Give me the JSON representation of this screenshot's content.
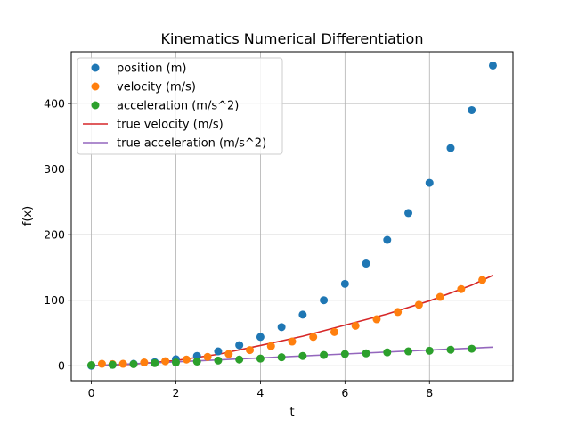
{
  "chart_data": {
    "type": "scatter",
    "title": "Kinematics Numerical Differentiation",
    "xlabel": "t",
    "ylabel": "f(x)",
    "xlim": [
      -0.475,
      9.975
    ],
    "ylim": [
      -22.8,
      479.0
    ],
    "xticks": [
      0,
      2,
      4,
      6,
      8
    ],
    "yticks": [
      0,
      100,
      200,
      300,
      400
    ],
    "grid": true,
    "legend_position": "top-left",
    "series": [
      {
        "name": "position (m)",
        "kind": "scatter",
        "color": "#1f77b4",
        "x": [
          0,
          0.5,
          1.0,
          1.5,
          2.0,
          2.5,
          3.0,
          3.5,
          4.0,
          4.5,
          5.0,
          5.5,
          6.0,
          6.5,
          7.0,
          7.5,
          8.0,
          8.5,
          9.0,
          9.5
        ],
        "y": [
          0,
          1.5,
          3.0,
          5.5,
          10.0,
          15.0,
          22.0,
          31.5,
          44.0,
          59.0,
          78.0,
          100.0,
          125.0,
          156.0,
          192.0,
          233.0,
          279.0,
          332.0,
          390.0,
          458.0
        ]
      },
      {
        "name": "velocity (m/s)",
        "kind": "scatter",
        "color": "#ff7f0e",
        "x": [
          0.25,
          0.5,
          0.75,
          1.25,
          1.75,
          2.25,
          2.75,
          3.25,
          3.75,
          4.25,
          4.75,
          5.25,
          5.75,
          6.25,
          6.75,
          7.25,
          7.75,
          8.25,
          8.75,
          9.25
        ],
        "y": [
          3.0,
          2.5,
          3.0,
          5.0,
          7.0,
          9.5,
          13.5,
          18.0,
          24.0,
          30.0,
          37.0,
          44.0,
          51.5,
          61.0,
          71.0,
          82.0,
          93.0,
          105.0,
          117.0,
          131.0
        ]
      },
      {
        "name": "acceleration (m/s^2)",
        "kind": "scatter",
        "color": "#2ca02c",
        "x": [
          0.0,
          0.5,
          1.0,
          1.5,
          2.0,
          2.5,
          3.0,
          3.5,
          4.0,
          4.5,
          5.0,
          5.5,
          6.0,
          6.5,
          7.0,
          7.5,
          8.0,
          8.5,
          9.0
        ],
        "y": [
          1.0,
          1.5,
          2.5,
          4.0,
          5.0,
          6.5,
          8.0,
          9.5,
          11.0,
          13.0,
          15.0,
          16.5,
          18.0,
          19.0,
          20.5,
          22.0,
          23.0,
          24.5,
          26.0
        ]
      },
      {
        "name": "true velocity (m/s)",
        "kind": "line",
        "color": "#d62728",
        "x": [
          0,
          1,
          2,
          3,
          4,
          5,
          6,
          7,
          8,
          9,
          9.5
        ],
        "y": [
          0,
          2.5,
          8.0,
          17.5,
          31.0,
          45.0,
          62.0,
          79.0,
          99.0,
          123.0,
          138.0
        ]
      },
      {
        "name": "true acceleration (m/s^2)",
        "kind": "line",
        "color": "#9467bd",
        "x": [
          0,
          2,
          4,
          6,
          8,
          9.5
        ],
        "y": [
          0,
          6.0,
          12.0,
          18.0,
          24.0,
          28.5
        ]
      }
    ]
  }
}
